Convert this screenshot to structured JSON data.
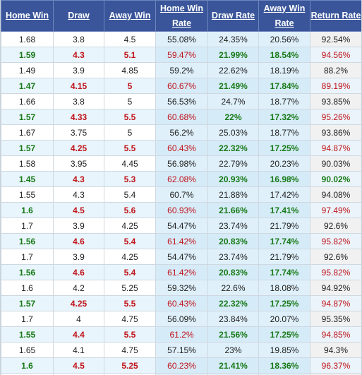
{
  "headers": [
    "Home Win",
    "Draw",
    "Away Win",
    "Home Win Rate",
    "Draw Rate",
    "Away Win Rate",
    "Return Rate"
  ],
  "rows": [
    [
      "1.68",
      "3.8",
      "4.5",
      "55.08%",
      "24.35%",
      "20.56%",
      "92.54%"
    ],
    [
      "1.59",
      "4.3",
      "5.1",
      "59.47%",
      "21.99%",
      "18.54%",
      "94.56%"
    ],
    [
      "1.49",
      "3.9",
      "4.85",
      "59.2%",
      "22.62%",
      "18.19%",
      "88.2%"
    ],
    [
      "1.47",
      "4.15",
      "5",
      "60.67%",
      "21.49%",
      "17.84%",
      "89.19%"
    ],
    [
      "1.66",
      "3.8",
      "5",
      "56.53%",
      "24.7%",
      "18.77%",
      "93.85%"
    ],
    [
      "1.57",
      "4.33",
      "5.5",
      "60.68%",
      "22%",
      "17.32%",
      "95.26%"
    ],
    [
      "1.67",
      "3.75",
      "5",
      "56.2%",
      "25.03%",
      "18.77%",
      "93.86%"
    ],
    [
      "1.57",
      "4.25",
      "5.5",
      "60.43%",
      "22.32%",
      "17.25%",
      "94.87%"
    ],
    [
      "1.58",
      "3.95",
      "4.45",
      "56.98%",
      "22.79%",
      "20.23%",
      "90.03%"
    ],
    [
      "1.45",
      "4.3",
      "5.3",
      "62.08%",
      "20.93%",
      "16.98%",
      "90.02%"
    ],
    [
      "1.55",
      "4.3",
      "5.4",
      "60.7%",
      "21.88%",
      "17.42%",
      "94.08%"
    ],
    [
      "1.6",
      "4.5",
      "5.6",
      "60.93%",
      "21.66%",
      "17.41%",
      "97.49%"
    ],
    [
      "1.7",
      "3.9",
      "4.25",
      "54.47%",
      "23.74%",
      "21.79%",
      "92.6%"
    ],
    [
      "1.56",
      "4.6",
      "5.4",
      "61.42%",
      "20.83%",
      "17.74%",
      "95.82%"
    ],
    [
      "1.7",
      "3.9",
      "4.25",
      "54.47%",
      "23.74%",
      "21.79%",
      "92.6%"
    ],
    [
      "1.56",
      "4.6",
      "5.4",
      "61.42%",
      "20.83%",
      "17.74%",
      "95.82%"
    ],
    [
      "1.6",
      "4.2",
      "5.25",
      "59.32%",
      "22.6%",
      "18.08%",
      "94.92%"
    ],
    [
      "1.57",
      "4.25",
      "5.5",
      "60.43%",
      "22.32%",
      "17.25%",
      "94.87%"
    ],
    [
      "1.7",
      "4",
      "4.75",
      "56.09%",
      "23.84%",
      "20.07%",
      "95.35%"
    ],
    [
      "1.55",
      "4.4",
      "5.5",
      "61.2%",
      "21.56%",
      "17.25%",
      "94.85%"
    ],
    [
      "1.65",
      "4.1",
      "4.75",
      "57.15%",
      "23%",
      "19.85%",
      "94.3%"
    ],
    [
      "1.6",
      "4.5",
      "5.25",
      "60.23%",
      "21.41%",
      "18.36%",
      "96.37%"
    ],
    [
      "",
      "",
      "",
      "",
      "",
      "",
      ""
    ]
  ],
  "colors": {
    "header_bg": "#3a559a",
    "green": "#177a17",
    "red": "#c0141a"
  }
}
